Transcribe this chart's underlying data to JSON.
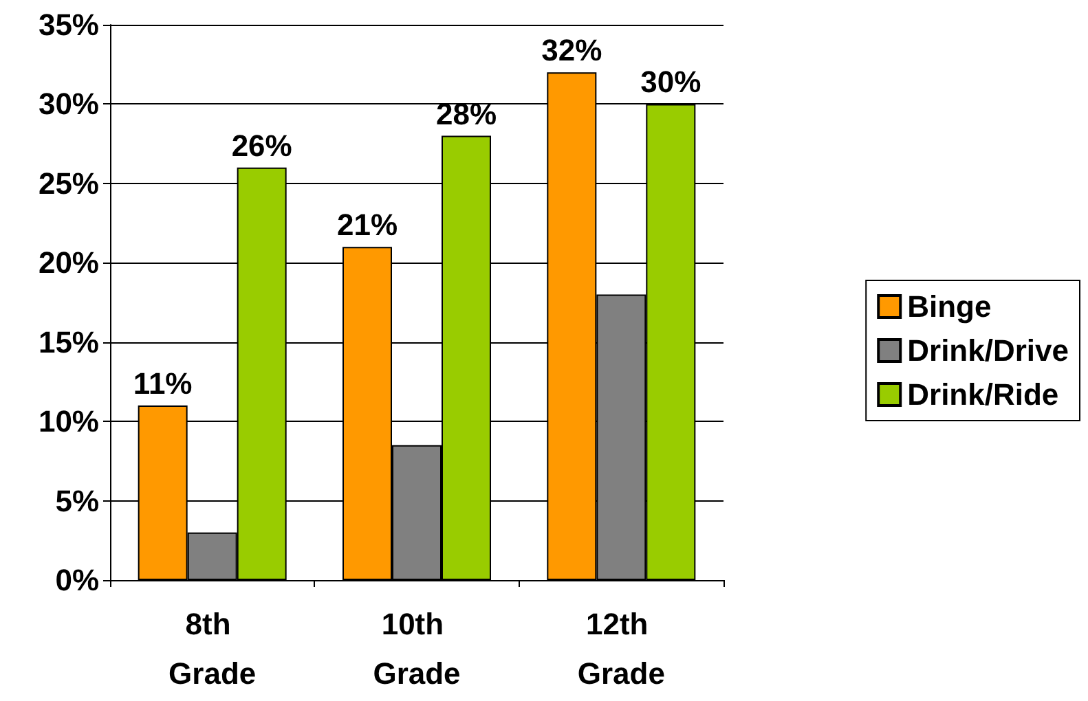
{
  "chart_data": {
    "type": "bar",
    "categories": [
      "8th Grade",
      "10th Grade",
      "12th Grade"
    ],
    "series": [
      {
        "name": "Binge",
        "color": "#ff9900",
        "values": [
          11,
          21,
          32
        ],
        "value_labels": [
          "11%",
          "21%",
          "32%"
        ]
      },
      {
        "name": "Drink/Drive",
        "color": "#808080",
        "values": [
          3,
          8.5,
          18
        ]
      },
      {
        "name": "Drink/Ride",
        "color": "#99cc00",
        "values": [
          26,
          28,
          30
        ],
        "value_labels": [
          "26%",
          "28%",
          "30%"
        ]
      }
    ],
    "ylim": [
      0,
      35
    ],
    "yticks": [
      {
        "value": 0,
        "label": "0%"
      },
      {
        "value": 5,
        "label": "5%"
      },
      {
        "value": 10,
        "label": "10%"
      },
      {
        "value": 15,
        "label": "15%"
      },
      {
        "value": 20,
        "label": "20%"
      },
      {
        "value": 25,
        "label": "25%"
      },
      {
        "value": 30,
        "label": "30%"
      },
      {
        "value": 35,
        "label": "35%"
      }
    ],
    "grid": "y",
    "legend": "right"
  }
}
